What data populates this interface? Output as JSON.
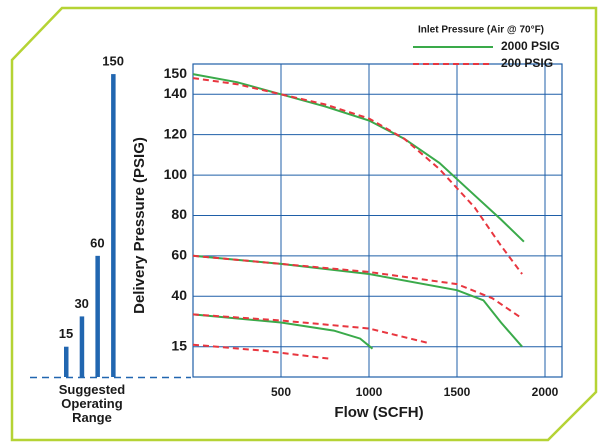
{
  "chart_data": [
    {
      "type": "line",
      "xlabel": "Flow (SCFH)",
      "ylabel": "Delivery Pressure (PSIG)",
      "legend_title": "Inlet Pressure (Air @ 70°F)",
      "legend": "upper right",
      "grid": true,
      "xlim": [
        0,
        2000
      ],
      "xticks": [
        500,
        1000,
        1500,
        2000
      ],
      "ylim": [
        0,
        155
      ],
      "yticks": [
        15,
        40,
        60,
        80,
        100,
        120,
        140,
        150
      ],
      "series": [
        {
          "name": "2000 PSIG",
          "color": "#3aaa4a",
          "dashed": false,
          "curves": [
            {
              "x": [
                0,
                250,
                500,
                750,
                1000,
                1200,
                1400,
                1600,
                1750,
                1880
              ],
              "y": [
                150,
                146,
                140,
                134,
                127,
                118,
                106,
                90,
                78,
                67
              ]
            },
            {
              "x": [
                0,
                500,
                1000,
                1500,
                1650,
                1750,
                1870
              ],
              "y": [
                60,
                56,
                51,
                43,
                38,
                27,
                15
              ]
            },
            {
              "x": [
                0,
                500,
                800,
                950,
                1020
              ],
              "y": [
                31,
                27,
                23,
                19,
                14
              ]
            }
          ]
        },
        {
          "name": "200 PSIG",
          "color": "#e8363f",
          "dashed": true,
          "curves": [
            {
              "x": [
                0,
                250,
                500,
                750,
                1000,
                1200,
                1400,
                1600,
                1750,
                1870
              ],
              "y": [
                148,
                145,
                140,
                135,
                128,
                118,
                103,
                84,
                65,
                51
              ]
            },
            {
              "x": [
                0,
                500,
                1000,
                1500,
                1700,
                1870
              ],
              "y": [
                60,
                56,
                52,
                46,
                39,
                29
              ]
            },
            {
              "x": [
                0,
                500,
                1000,
                1330
              ],
              "y": [
                31,
                28,
                24,
                17
              ]
            },
            {
              "x": [
                0,
                400,
                780
              ],
              "y": [
                16,
                13,
                9
              ]
            }
          ]
        }
      ]
    },
    {
      "type": "bar",
      "caption": "Suggested Operating Range",
      "values": [
        15,
        30,
        60,
        150
      ],
      "color": "#2166b0",
      "ylim": [
        0,
        155
      ]
    }
  ]
}
